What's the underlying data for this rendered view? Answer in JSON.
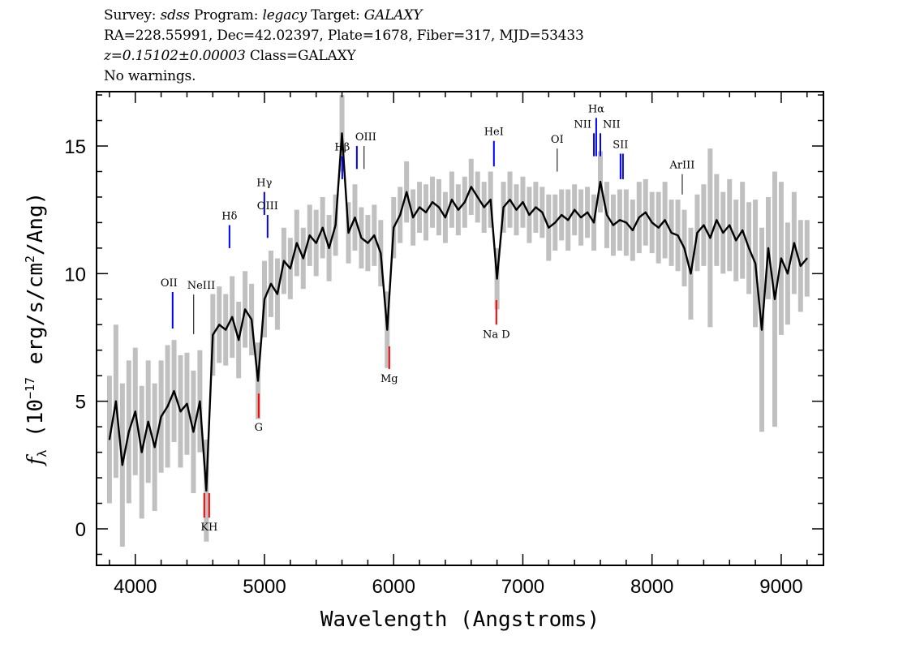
{
  "header": {
    "line1": {
      "survey_label": "Survey:",
      "survey": "sdss",
      "program_label": "Program:",
      "program": "legacy",
      "target_label": "Target:",
      "target": "GALAXY"
    },
    "line2": "RA=228.55991, Dec=42.02397, Plate=1678, Fiber=317, MJD=53433",
    "line3": {
      "z": "z=0.15102±0.00003",
      "class": "Class=GALAXY"
    },
    "line4": "No warnings."
  },
  "chart_data": {
    "type": "line",
    "xlabel": "Wavelength (Angstroms)",
    "ylabel": "f_λ (10^-17 erg/s/cm^2/Ang)",
    "ylabel_parts": {
      "f": "f",
      "sub": "λ",
      "a": " (10",
      "exp": "−17",
      "b": " erg/s/cm",
      "exp2": "2",
      "c": "/Ang)"
    },
    "xlim": [
      3700,
      9327
    ],
    "ylim": [
      -1.43,
      17.13
    ],
    "xticks": [
      4000,
      5000,
      6000,
      7000,
      8000,
      9000
    ],
    "yticks": [
      0,
      5,
      10,
      15
    ],
    "grid": false,
    "colors": {
      "flux": "#000000",
      "noise": "#c0c0c0",
      "emission": "#0000ff",
      "absorption": "#ff0000",
      "other": "#000000"
    },
    "wavelength_start": 3800,
    "wavelength_step": 50,
    "flux": [
      3.5,
      5.0,
      2.5,
      3.8,
      4.6,
      3.0,
      4.2,
      3.2,
      4.4,
      4.8,
      5.4,
      4.6,
      4.9,
      3.8,
      5.0,
      1.5,
      7.6,
      8.0,
      7.8,
      8.3,
      7.4,
      8.6,
      8.2,
      5.8,
      9.0,
      9.6,
      9.2,
      10.5,
      10.2,
      11.2,
      10.6,
      11.5,
      11.2,
      11.8,
      11.0,
      11.9,
      15.5,
      11.6,
      12.2,
      11.4,
      11.2,
      11.5,
      10.8,
      7.8,
      11.8,
      12.3,
      13.2,
      12.2,
      12.6,
      12.4,
      12.8,
      12.6,
      12.2,
      12.9,
      12.5,
      12.8,
      13.4,
      13.0,
      12.6,
      12.9,
      9.8,
      12.6,
      12.9,
      12.5,
      12.8,
      12.3,
      12.6,
      12.4,
      11.8,
      12.0,
      12.3,
      12.1,
      12.5,
      12.2,
      12.4,
      12.0,
      13.6,
      12.3,
      11.9,
      12.1,
      12.0,
      11.7,
      12.2,
      12.4,
      12.0,
      11.8,
      12.1,
      11.6,
      11.5,
      11.0,
      10.0,
      11.6,
      11.9,
      11.4,
      12.1,
      11.6,
      11.9,
      11.3,
      11.7,
      11.0,
      10.4,
      7.8,
      11.0,
      9.0,
      10.6,
      10.0,
      11.2,
      10.3,
      10.6
    ],
    "noise": [
      2.5,
      3.0,
      3.2,
      2.8,
      2.5,
      2.6,
      2.4,
      2.5,
      2.2,
      2.4,
      2.0,
      2.2,
      2.0,
      2.4,
      2.0,
      2.0,
      1.6,
      1.5,
      1.4,
      1.6,
      1.5,
      1.5,
      1.4,
      1.5,
      1.5,
      1.3,
      1.4,
      1.3,
      1.2,
      1.3,
      1.2,
      1.2,
      1.3,
      1.2,
      1.3,
      1.2,
      1.5,
      1.2,
      1.3,
      1.2,
      1.1,
      1.2,
      1.3,
      1.5,
      1.2,
      1.1,
      1.2,
      1.1,
      1.0,
      1.1,
      1.0,
      1.1,
      1.0,
      1.1,
      1.0,
      1.0,
      1.1,
      1.0,
      1.0,
      1.1,
      1.2,
      1.0,
      1.1,
      1.0,
      1.0,
      1.1,
      1.0,
      1.0,
      1.3,
      1.1,
      1.0,
      1.2,
      1.0,
      1.1,
      1.0,
      1.1,
      1.2,
      1.3,
      1.2,
      1.2,
      1.3,
      1.2,
      1.4,
      1.3,
      1.2,
      1.4,
      1.5,
      1.3,
      1.4,
      1.5,
      1.8,
      1.5,
      1.6,
      3.5,
      1.8,
      1.6,
      1.8,
      1.6,
      1.9,
      1.8,
      2.5,
      4.0,
      2.0,
      5.0,
      3.0,
      2.0,
      2.0,
      1.8,
      1.5
    ],
    "lines": [
      {
        "name": "OII",
        "wavelength": 4289,
        "type": "emission",
        "y1": 7.85,
        "y2": 9.28
      },
      {
        "name": "NeIII",
        "wavelength": 4452,
        "type": "other",
        "y1": 7.63,
        "y2": 9.18
      },
      {
        "name": "Hδ",
        "wavelength": 4729,
        "type": "emission",
        "y1": 11.0,
        "y2": 11.9
      },
      {
        "name": "Hγ",
        "wavelength": 4999,
        "type": "emission",
        "y1": 12.3,
        "y2": 13.2
      },
      {
        "name": "OIII",
        "wavelength": 5024,
        "type": "emission",
        "y1": 11.4,
        "y2": 12.3
      },
      {
        "name": "Hβ",
        "wavelength": 5602,
        "type": "emission",
        "y1": 13.7,
        "y2": 14.6
      },
      {
        "name": "OIII",
        "wavelength": 5715,
        "type": "emission",
        "y1": 14.1,
        "y2": 15.0
      },
      {
        "name": "",
        "wavelength": 5771,
        "type": "other",
        "y1": 14.1,
        "y2": 15.0
      },
      {
        "name": "HeI",
        "wavelength": 6776,
        "type": "emission",
        "y1": 14.2,
        "y2": 15.2
      },
      {
        "name": "OI",
        "wavelength": 7266,
        "type": "other",
        "y1": 14.0,
        "y2": 14.9
      },
      {
        "name": "NII",
        "wavelength": 7550,
        "type": "emission",
        "y1": 14.6,
        "y2": 15.5
      },
      {
        "name": "Hα",
        "wavelength": 7568,
        "type": "emission",
        "y1": 14.6,
        "y2": 16.1
      },
      {
        "name": "NII",
        "wavelength": 7600,
        "type": "emission",
        "y1": 14.6,
        "y2": 15.5
      },
      {
        "name": "SII",
        "wavelength": 7756,
        "type": "emission",
        "y1": 13.7,
        "y2": 14.7
      },
      {
        "name": "",
        "wavelength": 7775,
        "type": "emission",
        "y1": 13.7,
        "y2": 14.7
      },
      {
        "name": "ArIII",
        "wavelength": 8234,
        "type": "other",
        "y1": 13.1,
        "y2": 13.9
      },
      {
        "name": "",
        "wavelength": 4534,
        "type": "absorption",
        "y1": 0.44,
        "y2": 1.4
      },
      {
        "name": "KH",
        "wavelength": 4572,
        "type": "absorption",
        "y1": 0.44,
        "y2": 1.4
      },
      {
        "name": "G",
        "wavelength": 4955,
        "type": "absorption",
        "y1": 4.35,
        "y2": 5.3
      },
      {
        "name": "Mg",
        "wavelength": 5966,
        "type": "absorption",
        "y1": 6.26,
        "y2": 7.15
      },
      {
        "name": "Na D",
        "wavelength": 6795,
        "type": "absorption",
        "y1": 8.0,
        "y2": 8.96
      }
    ]
  }
}
